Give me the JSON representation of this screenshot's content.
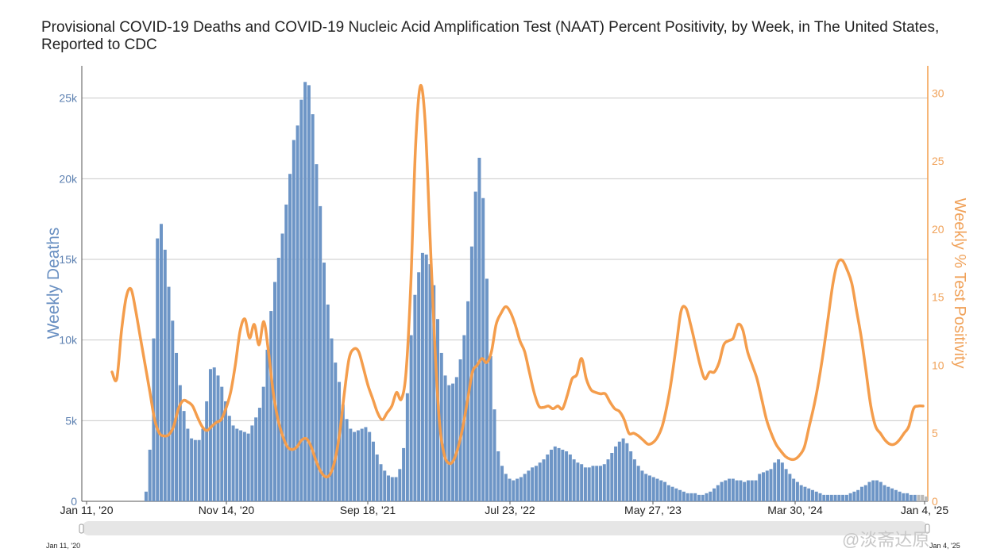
{
  "chart_data": {
    "type": "bar+line",
    "title": "Provisional COVID-19 Deaths and COVID-19 Nucleic Acid Amplification Test (NAAT) Percent Positivity, by Week, in The United States, Reported to CDC",
    "ylabel_left": "Weekly Deaths",
    "ylabel_right": "Weekly % Test Positivity",
    "y_left_range": [
      0,
      27000
    ],
    "y_right_range": [
      0,
      32
    ],
    "y_left_ticks": [
      "0",
      "5k",
      "10k",
      "15k",
      "20k",
      "25k"
    ],
    "y_right_ticks": [
      "0",
      "5",
      "10",
      "15",
      "20",
      "25",
      "30"
    ],
    "x_tick_labels": [
      "Jan 11, '20",
      "Nov 14, '20",
      "Sep 18, '21",
      "Jul 23, '22",
      "May 27, '23",
      "Mar 30, '24",
      "Jan 4, '25"
    ],
    "grid": true,
    "colors": {
      "deaths": "#6d95c6",
      "positivity": "#f49d4c"
    },
    "deaths_weekly": [
      0,
      0,
      0,
      0,
      0,
      0,
      0,
      0,
      0,
      600,
      3200,
      10100,
      16300,
      17200,
      15600,
      13300,
      11200,
      9200,
      7200,
      5600,
      4500,
      3900,
      3800,
      3800,
      4500,
      6200,
      8200,
      8300,
      7800,
      7100,
      6200,
      5300,
      4700,
      4500,
      4400,
      4300,
      4200,
      4700,
      5200,
      5800,
      7100,
      9400,
      11800,
      13600,
      15100,
      16600,
      18400,
      20300,
      22400,
      23300,
      24900,
      26000,
      25800,
      24000,
      20900,
      18300,
      14800,
      12200,
      10100,
      8600,
      7400,
      6000,
      5100,
      4500,
      4300,
      4400,
      4500,
      4600,
      4300,
      3700,
      2900,
      2300,
      1900,
      1600,
      1500,
      1500,
      2000,
      3300,
      6700,
      10300,
      12800,
      14200,
      15400,
      15300,
      14700,
      13400,
      11300,
      9200,
      7800,
      7200,
      7300,
      7700,
      8800,
      10300,
      12400,
      15800,
      19200,
      21300,
      18800,
      13800,
      9000,
      5700,
      3100,
      2200,
      1700,
      1400,
      1300,
      1400,
      1500,
      1700,
      1900,
      2100,
      2200,
      2400,
      2600,
      2900,
      3200,
      3400,
      3300,
      3200,
      3100,
      2900,
      2600,
      2400,
      2300,
      2100,
      2100,
      2200,
      2200,
      2200,
      2300,
      2600,
      3000,
      3400,
      3700,
      3900,
      3600,
      3100,
      2600,
      2200,
      1900,
      1700,
      1600,
      1500,
      1400,
      1300,
      1200,
      1000,
      900,
      800,
      700,
      600,
      500,
      500,
      500,
      400,
      400,
      500,
      600,
      800,
      1000,
      1200,
      1300,
      1400,
      1400,
      1300,
      1300,
      1200,
      1300,
      1300,
      1300,
      1700,
      1800,
      1900,
      2000,
      2400,
      2600,
      2400,
      2000,
      1700,
      1400,
      1200,
      1000,
      900,
      800,
      700,
      600,
      500,
      400,
      400,
      400,
      400,
      400,
      400,
      400,
      500,
      600,
      700,
      900,
      1000,
      1200,
      1300,
      1300,
      1200,
      1000,
      900,
      800,
      700,
      600,
      500,
      500,
      400,
      400,
      400,
      400,
      300
    ]
  },
  "navigator": {
    "left_label": "Jan 11, '20",
    "right_label": "Jan 4, '25"
  },
  "watermark": "@淡斋达原"
}
